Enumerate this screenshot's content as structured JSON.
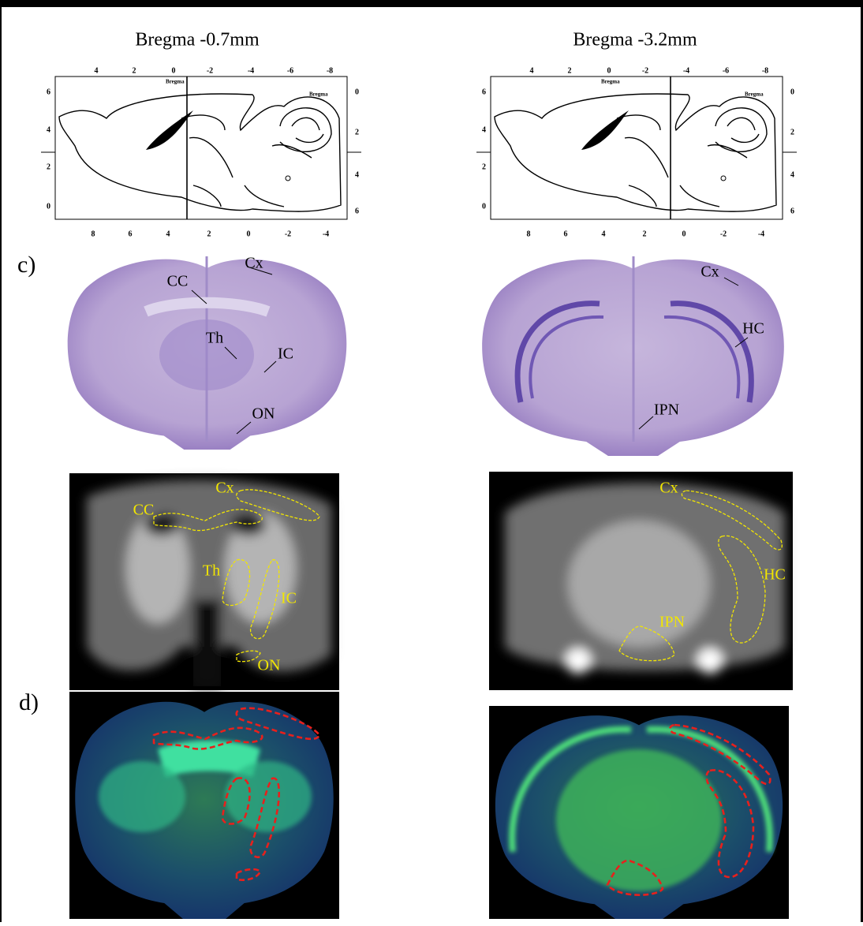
{
  "columns": [
    {
      "title": "Bregma -0.7mm",
      "histology_labels": [
        "Cx",
        "CC",
        "Th",
        "IC",
        "ON"
      ],
      "mri_labels": [
        "Cx",
        "CC",
        "Th",
        "IC",
        "ON"
      ]
    },
    {
      "title": "Bregma -3.2mm",
      "histology_labels": [
        "Cx",
        "HC",
        "IPN"
      ],
      "mri_labels": [
        "Cx",
        "HC",
        "IPN"
      ]
    }
  ],
  "panel_labels": {
    "c": "c)",
    "d": "d)"
  },
  "atlas": {
    "label": "Bregma",
    "top_ticks": [
      "4",
      "2",
      "0",
      "-2",
      "-4",
      "-6",
      "-8"
    ],
    "left_ticks": [
      "6",
      "4",
      "2",
      "0"
    ],
    "right_ticks": [
      "0",
      "2",
      "4",
      "6"
    ],
    "bottom_ticks": [
      "8",
      "6",
      "4",
      "2",
      "0",
      "-2",
      "-4"
    ]
  }
}
